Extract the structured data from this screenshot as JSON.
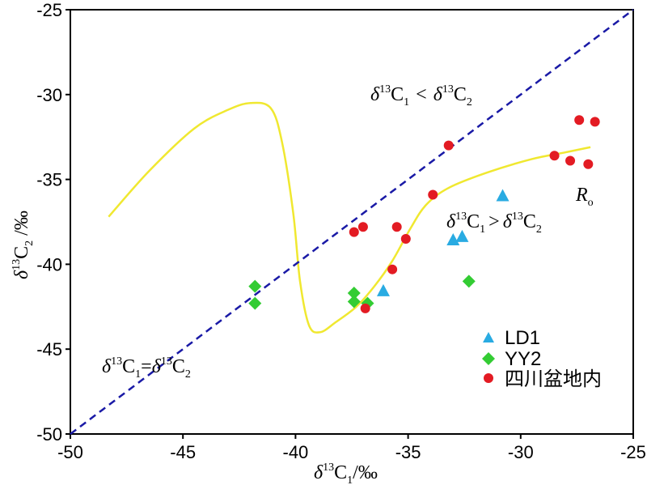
{
  "chart_data": {
    "type": "scatter",
    "xlim": [
      -50,
      -25
    ],
    "ylim": [
      -50,
      -25
    ],
    "x_ticks": [
      "-50",
      "-45",
      "-40",
      "-35",
      "-30",
      "-25"
    ],
    "y_ticks": [
      "-50",
      "-45",
      "-40",
      "-35",
      "-30",
      "-25"
    ],
    "x_ticks_num": [
      -50,
      -45,
      -40,
      -35,
      -30,
      -25
    ],
    "y_ticks_num": [
      -50,
      -45,
      -40,
      -35,
      -30,
      -25
    ],
    "xlabel": {
      "delta": "δ",
      "sup": "13",
      "main": "C",
      "sub": "1",
      "unit": "/‰"
    },
    "ylabel": {
      "delta": "δ",
      "sup": "13",
      "main": "C",
      "sub": "2",
      "unit": " /‰"
    },
    "grid": false,
    "legend_position": "bottom-right",
    "series": [
      {
        "name": "LD1",
        "marker": "triangle",
        "color": "#29abe2",
        "points": [
          [
            -30.8,
            -36.0
          ],
          [
            -33.0,
            -38.6
          ],
          [
            -32.6,
            -38.4
          ],
          [
            -36.1,
            -41.6
          ]
        ]
      },
      {
        "name": "YY2",
        "marker": "diamond",
        "color": "#33cc33",
        "points": [
          [
            -41.8,
            -41.3
          ],
          [
            -41.8,
            -42.3
          ],
          [
            -37.4,
            -41.7
          ],
          [
            -37.4,
            -42.2
          ],
          [
            -36.8,
            -42.3
          ],
          [
            -32.3,
            -41.0
          ]
        ]
      },
      {
        "name": "四川盆地内",
        "marker": "circle",
        "color": "#e31b23",
        "points": [
          [
            -27.4,
            -31.5
          ],
          [
            -26.7,
            -31.6
          ],
          [
            -33.2,
            -33.0
          ],
          [
            -28.5,
            -33.6
          ],
          [
            -27.8,
            -33.9
          ],
          [
            -27.0,
            -34.1
          ],
          [
            -33.9,
            -35.9
          ],
          [
            -37.4,
            -38.1
          ],
          [
            -37.0,
            -37.8
          ],
          [
            -35.5,
            -37.8
          ],
          [
            -35.1,
            -38.5
          ],
          [
            -35.7,
            -40.3
          ],
          [
            -36.9,
            -42.6
          ]
        ]
      }
    ],
    "reference_line": {
      "label": "δ13C1=δ13C2",
      "color": "#1a1aa6",
      "from": [
        -50,
        -50
      ],
      "to": [
        -25,
        -25
      ]
    },
    "trend_curve": {
      "label": "Ro",
      "color": "#f0e830",
      "points": [
        [
          -48.3,
          -37.2
        ],
        [
          -46.5,
          -34.5
        ],
        [
          -44.5,
          -32.0
        ],
        [
          -43.0,
          -30.9
        ],
        [
          -42.0,
          -30.5
        ],
        [
          -41.1,
          -30.8
        ],
        [
          -40.6,
          -32.8
        ],
        [
          -40.1,
          -37.0
        ],
        [
          -39.8,
          -41.0
        ],
        [
          -39.4,
          -43.6
        ],
        [
          -38.9,
          -44.0
        ],
        [
          -38.2,
          -43.4
        ],
        [
          -37.3,
          -42.5
        ],
        [
          -36.5,
          -41.3
        ],
        [
          -35.7,
          -39.8
        ],
        [
          -34.9,
          -37.9
        ],
        [
          -34.2,
          -36.5
        ],
        [
          -33.2,
          -35.5
        ],
        [
          -31.5,
          -34.6
        ],
        [
          -29.5,
          -33.8
        ],
        [
          -28.0,
          -33.4
        ],
        [
          -26.9,
          -33.1
        ]
      ]
    },
    "annotations": {
      "upper": {
        "a_delta": "δ",
        "a_sup": "13",
        "a_main": "C",
        "a_sub": "1",
        "op": "<",
        "b_delta": "δ",
        "b_sup": "13",
        "b_main": "C",
        "b_sub": "2"
      },
      "lower": {
        "a_delta": "δ",
        "a_sup": "13",
        "a_main": "C",
        "a_sub": "1",
        "op": ">",
        "b_delta": "δ",
        "b_sup": "13",
        "b_main": "C",
        "b_sub": "2"
      },
      "equal": {
        "a_delta": "δ",
        "a_sup": "13",
        "a_main": "C",
        "a_sub": "1",
        "op": "=",
        "b_delta": "δ",
        "b_sup": "13",
        "b_main": "C",
        "b_sub": "2"
      },
      "ro": {
        "main": "R",
        "sub": "o"
      }
    }
  }
}
